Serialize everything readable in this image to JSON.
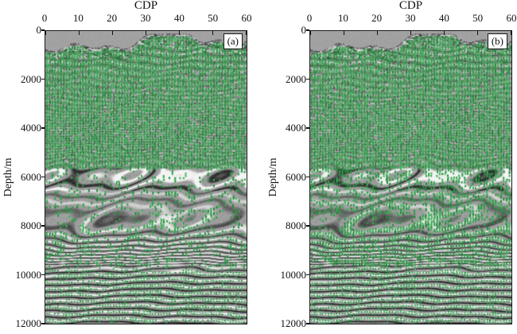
{
  "figure": {
    "background": "#ffffff",
    "axis_color": "#1a1a1a",
    "panels": [
      {
        "label": "(a)",
        "x_axis": {
          "title": "CDP",
          "min": 0,
          "max": 60,
          "ticks": [
            "0",
            "10",
            "20",
            "30",
            "40",
            "50",
            "60"
          ]
        },
        "y_axis": {
          "title": "Depth/m",
          "min": 0,
          "max": 12000,
          "ticks": [
            "0",
            "2000",
            "4000",
            "6000",
            "8000",
            "10000",
            "12000"
          ]
        },
        "texture": {
          "green_seed": 1337,
          "bg_seed": 911,
          "base_gray": "#9d9d9d",
          "cap_gray": "#a2a2a2",
          "green_palette": [
            "#2ca449",
            "#259a40",
            "#3ab254",
            "#1f8637"
          ],
          "green_density_bands": [
            [
              0,
              0.47,
              0.92
            ],
            [
              0.47,
              0.555,
              0.2
            ],
            [
              0.555,
              0.655,
              0.26
            ],
            [
              0.655,
              0.82,
              0.28
            ],
            [
              0.82,
              1,
              0.5
            ]
          ],
          "reflector_bands": [
            [
              0,
              0.05,
              0.15
            ],
            [
              0.05,
              0.13,
              0.45
            ],
            [
              0.13,
              0.47,
              0.3
            ],
            [
              0.47,
              0.545,
              0.95
            ],
            [
              0.545,
              0.63,
              0.5
            ],
            [
              0.63,
              0.71,
              0.7
            ],
            [
              0.71,
              0.82,
              0.85
            ],
            [
              0.82,
              1,
              1.0
            ]
          ]
        }
      },
      {
        "label": "(b)",
        "x_axis": {
          "title": "CDP",
          "min": 0,
          "max": 60,
          "ticks": [
            "0",
            "10",
            "20",
            "30",
            "40",
            "50",
            "60"
          ]
        },
        "y_axis": {
          "title": "Depth/m",
          "min": 0,
          "max": 12000,
          "ticks": [
            "0",
            "2000",
            "4000",
            "6000",
            "8000",
            "10000",
            "12000"
          ]
        },
        "texture": {
          "green_seed": 7331,
          "bg_seed": 911,
          "base_gray": "#9d9d9d",
          "cap_gray": "#a2a2a2",
          "green_palette": [
            "#2ca449",
            "#259a40",
            "#3ab254",
            "#1f8637"
          ],
          "green_density_bands": [
            [
              0,
              0.47,
              0.92
            ],
            [
              0.47,
              0.555,
              0.5
            ],
            [
              0.555,
              0.655,
              0.55
            ],
            [
              0.655,
              0.82,
              0.55
            ],
            [
              0.82,
              1,
              0.65
            ]
          ],
          "reflector_bands": [
            [
              0,
              0.05,
              0.15
            ],
            [
              0.05,
              0.13,
              0.45
            ],
            [
              0.13,
              0.47,
              0.3
            ],
            [
              0.47,
              0.545,
              0.95
            ],
            [
              0.545,
              0.63,
              0.5
            ],
            [
              0.63,
              0.71,
              0.7
            ],
            [
              0.71,
              0.82,
              0.85
            ],
            [
              0.82,
              1,
              1.0
            ]
          ]
        }
      }
    ]
  },
  "chart_data": {
    "type": "heatmap",
    "subtype": "seismic-depth-section-pair",
    "layout": "two side-by-side panels, shared styling, legend none, grid off",
    "panels": [
      {
        "label": "(a)",
        "xlabel": "CDP",
        "xlim": [
          0,
          60
        ],
        "xticks": [
          0,
          10,
          20,
          30,
          40,
          50,
          60
        ],
        "ylabel": "Depth/m",
        "ylim": [
          12000,
          0
        ],
        "yticks": [
          0,
          2000,
          4000,
          6000,
          8000,
          10000,
          12000
        ],
        "content": "grayscale seismic reflection section with green picked events; uniform gray cap above an undulating surface at ~300-900 m; dense green coverage from ~600 m to ~5800 m; strong reflectors 6000-6600 m; sparse green picks 6000-9700 m over wavy gray reflectors; green dots aligned along strong sub-horizontal layered reflectors 9800-12000 m"
      },
      {
        "label": "(b)",
        "xlabel": "CDP",
        "xlim": [
          0,
          60
        ],
        "xticks": [
          0,
          10,
          20,
          30,
          40,
          50,
          60
        ],
        "ylabel": "Depth/m",
        "ylim": [
          12000,
          0
        ],
        "yticks": [
          0,
          2000,
          4000,
          6000,
          8000,
          10000,
          12000
        ],
        "content": "same seismic section as (a); green picks noticeably denser than (a) between ~6000 m and 12000 m, nearly continuous green coverage over the deep layered zone"
      }
    ]
  }
}
